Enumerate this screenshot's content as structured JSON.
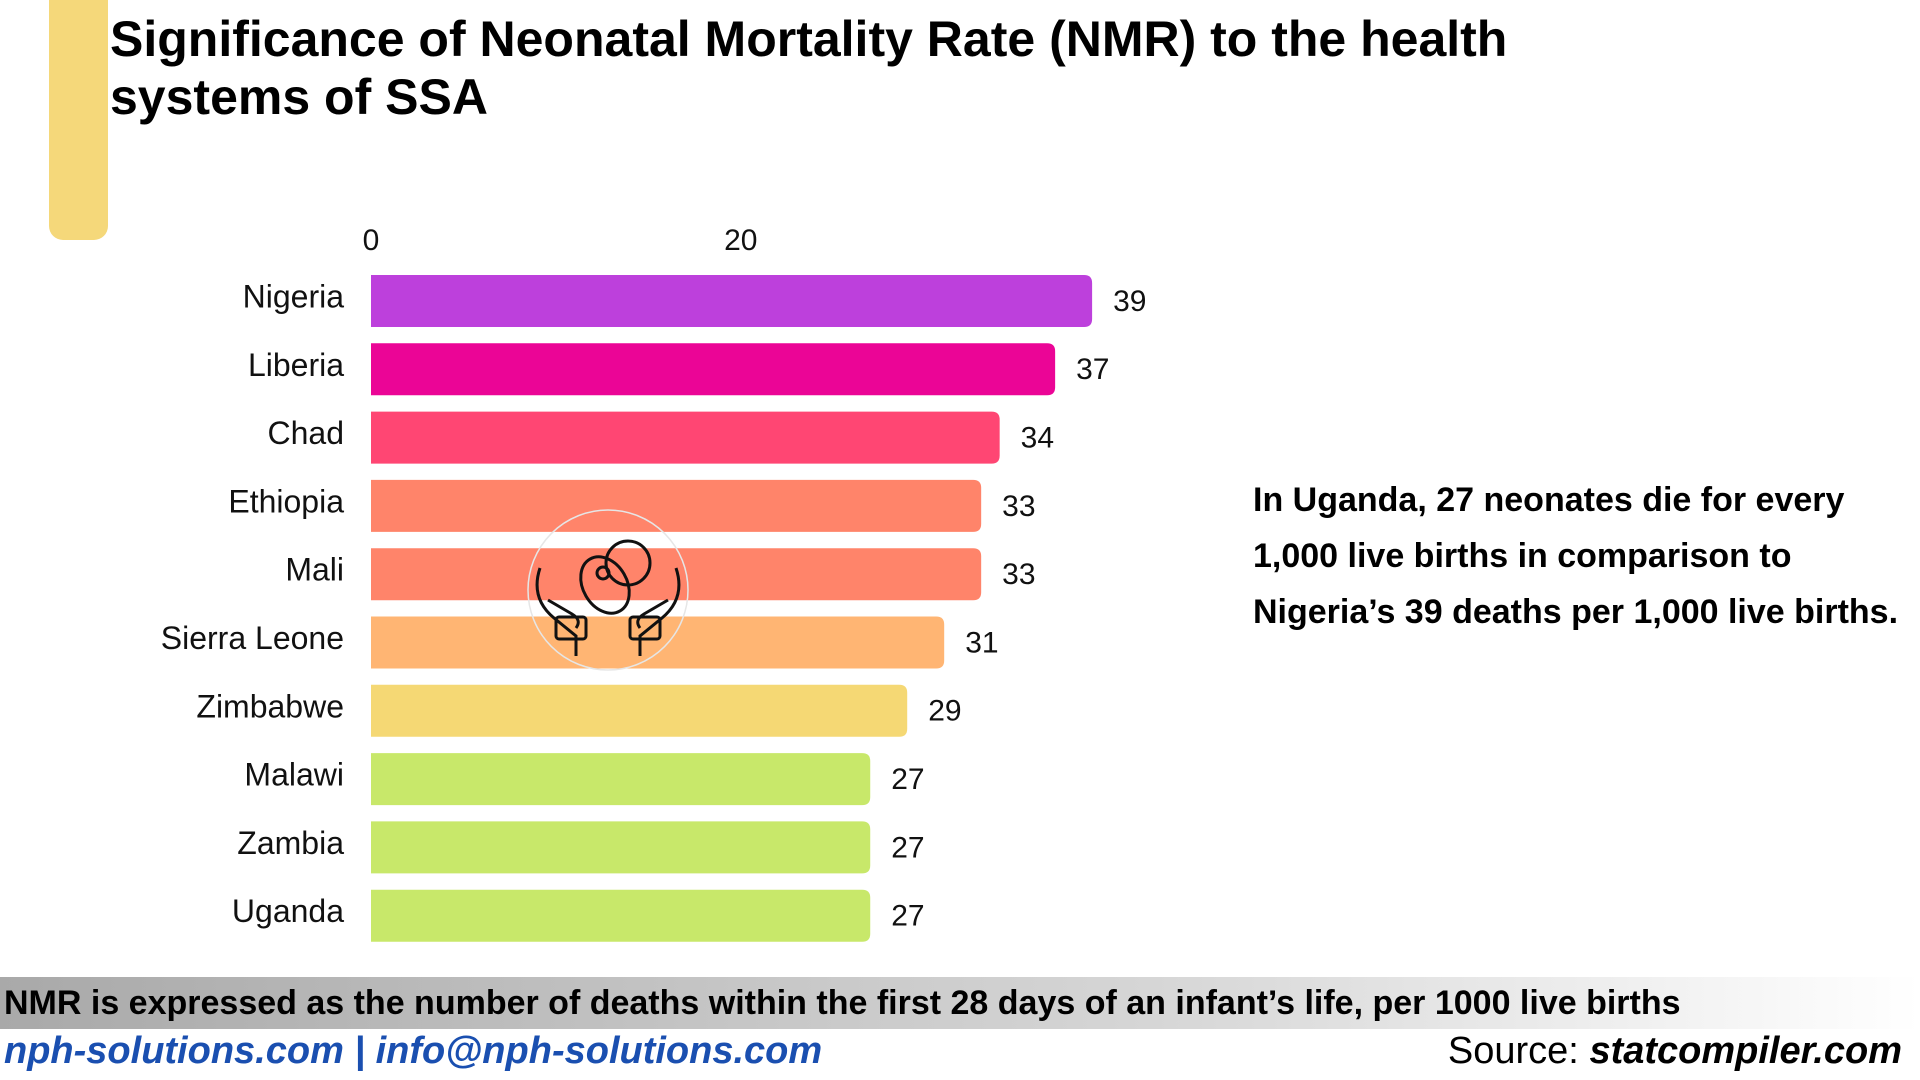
{
  "chart_data": {
    "type": "bar",
    "orientation": "horizontal",
    "title": "Significance of Neonatal Mortality Rate (NMR) to the health systems of SSA",
    "categories": [
      "Nigeria",
      "Liberia",
      "Chad",
      "Ethiopia",
      "Mali",
      "Sierra Leone",
      "Zimbabwe",
      "Malawi",
      "Zambia",
      "Uganda"
    ],
    "values": [
      39,
      37,
      34,
      33,
      33,
      31,
      29,
      27,
      27,
      27
    ],
    "colors": [
      "#bd40dc",
      "#eb0596",
      "#ff4673",
      "#ff846a",
      "#ff846a",
      "#ffb573",
      "#f5d874",
      "#c8e86a",
      "#c8e86a",
      "#c8e86a"
    ],
    "xlim": [
      0,
      40
    ],
    "xticks": [
      0,
      20
    ],
    "annotation": "In Uganda, 27 neonates die for every 1,000 live births in comparison to Nigeria’s 39 deaths per 1,000 live births."
  },
  "footer": {
    "note": "NMR is expressed as the number of deaths within the first 28 days of an infant’s life, per 1000 live births",
    "contact": "nph-solutions.com | info@nph-solutions.com",
    "source_label": "Source:",
    "source": "statcompiler.com"
  }
}
